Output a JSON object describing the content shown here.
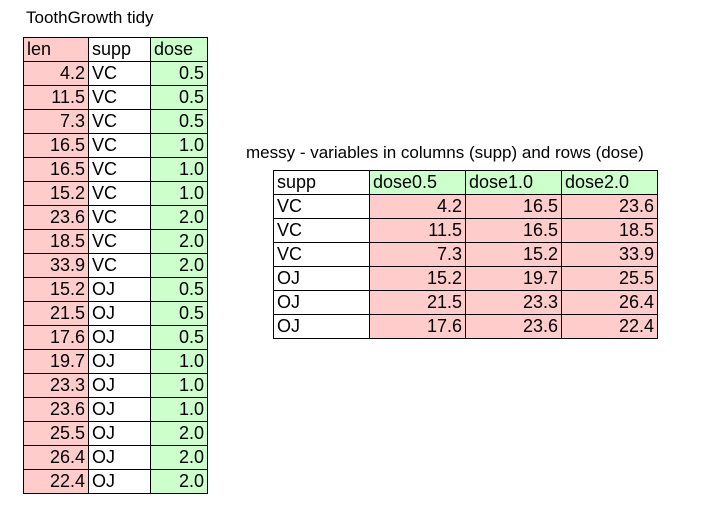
{
  "tidy": {
    "title": "ToothGrowth tidy",
    "headers": [
      "len",
      "supp",
      "dose"
    ],
    "rows": [
      [
        "4.2",
        "VC",
        "0.5"
      ],
      [
        "11.5",
        "VC",
        "0.5"
      ],
      [
        "7.3",
        "VC",
        "0.5"
      ],
      [
        "16.5",
        "VC",
        "1.0"
      ],
      [
        "16.5",
        "VC",
        "1.0"
      ],
      [
        "15.2",
        "VC",
        "1.0"
      ],
      [
        "23.6",
        "VC",
        "2.0"
      ],
      [
        "18.5",
        "VC",
        "2.0"
      ],
      [
        "33.9",
        "VC",
        "2.0"
      ],
      [
        "15.2",
        "OJ",
        "0.5"
      ],
      [
        "21.5",
        "OJ",
        "0.5"
      ],
      [
        "17.6",
        "OJ",
        "0.5"
      ],
      [
        "19.7",
        "OJ",
        "1.0"
      ],
      [
        "23.3",
        "OJ",
        "1.0"
      ],
      [
        "23.6",
        "OJ",
        "1.0"
      ],
      [
        "25.5",
        "OJ",
        "2.0"
      ],
      [
        "26.4",
        "OJ",
        "2.0"
      ],
      [
        "22.4",
        "OJ",
        "2.0"
      ]
    ]
  },
  "messy": {
    "title": "messy - variables in columns (supp) and rows (dose)",
    "headers": [
      "supp",
      "dose0.5",
      "dose1.0",
      "dose2.0"
    ],
    "rows": [
      [
        "VC",
        "4.2",
        "16.5",
        "23.6"
      ],
      [
        "VC",
        "11.5",
        "16.5",
        "18.5"
      ],
      [
        "VC",
        "7.3",
        "15.2",
        "33.9"
      ],
      [
        "OJ",
        "15.2",
        "19.7",
        "25.5"
      ],
      [
        "OJ",
        "21.5",
        "23.3",
        "26.4"
      ],
      [
        "OJ",
        "17.6",
        "23.6",
        "22.4"
      ]
    ]
  },
  "colors": {
    "pink": "#ffcccc",
    "green": "#ccffcc",
    "white": "#ffffff"
  }
}
